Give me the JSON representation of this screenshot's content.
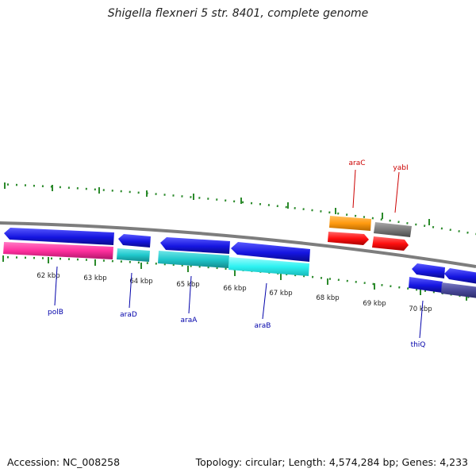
{
  "title": "Shigella flexneri 5 str. 8401, complete genome",
  "footer": {
    "accession": "Accession: NC_008258",
    "summary": "Topology: circular; Length: 4,574,284 bp; Genes: 4,233"
  },
  "colors": {
    "backbone": "#8a8a8a",
    "tick": "#2b8a2b",
    "strand_label_forward": "#cc0000",
    "strand_label_reverse": "#0000aa",
    "gene_blue": "#1515e0",
    "gene_pink": "#ff2f9e",
    "gene_cyan": "#20c8cc",
    "gene_light_cyan": "#2ef2f2",
    "gene_red": "#ff1010",
    "gene_orange": "#ff9a10",
    "gene_gray": "#7a7a7a",
    "gene_purple": "#4a4a9a"
  },
  "kbp_labels": [
    "62 kbp",
    "63 kbp",
    "64 kbp",
    "65 kbp",
    "66 kbp",
    "67 kbp",
    "68 kbp",
    "69 kbp",
    "70 kbp"
  ],
  "gene_labels": {
    "forward": [
      "araC",
      "yabI"
    ],
    "reverse": [
      "polB",
      "araD",
      "araA",
      "araB",
      "thiQ"
    ]
  }
}
